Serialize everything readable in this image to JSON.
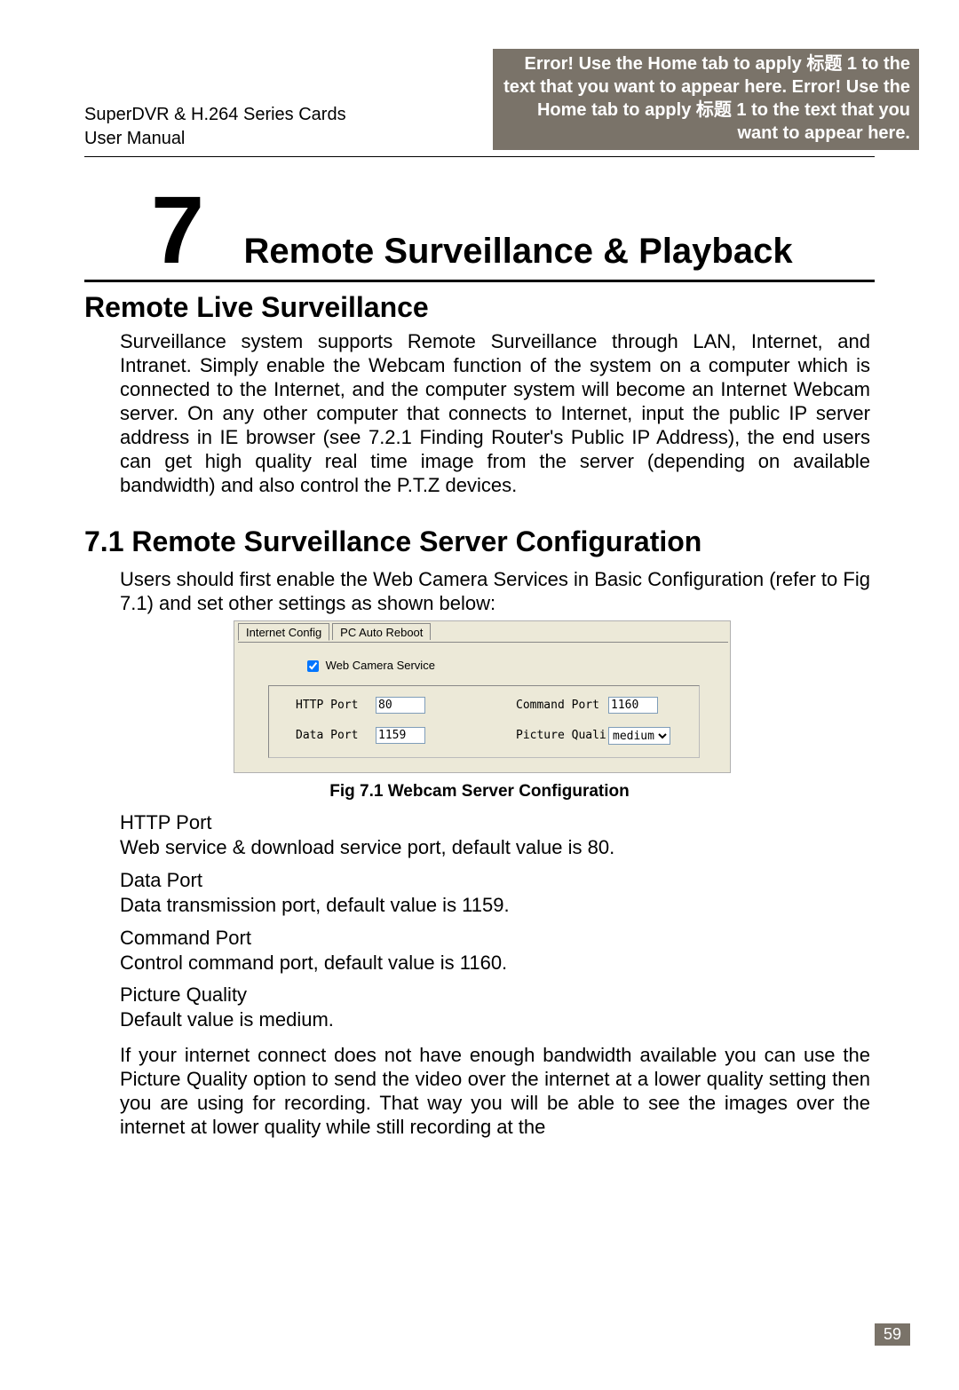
{
  "header": {
    "left_line1": "SuperDVR & H.264 Series Cards",
    "left_line2": "User Manual",
    "right_error": "Error! Use the Home tab to apply 标题 1 to the text that you want to appear here. Error! Use the Home tab to apply 标题 1 to the text that you want to appear here."
  },
  "chapter": {
    "number": "7",
    "title": "Remote Surveillance & Playback"
  },
  "sections": {
    "h2a": "Remote Live Surveillance",
    "h2b": "7.1 Remote Surveillance Server Configuration"
  },
  "paragraphs": {
    "p1": "Surveillance system supports Remote Surveillance through LAN, Internet, and Intranet. Simply enable the Webcam function of the system on a computer which is connected to the Internet, and the computer system will become an Internet Webcam server. On any other computer that connects to Internet, input the public IP server address in IE browser (see 7.2.1 Finding Router's Public IP Address), the end users can get high quality real time image from the server (depending on available bandwidth) and also control the P.T.Z devices.",
    "p2": "Users should first enable the Web Camera Services in Basic Configuration (refer to Fig 7.1) and set other settings as shown below:",
    "p3": "If your internet connect does not have enough bandwidth available you can use the Picture Quality option to send the video over the internet at a lower quality setting then you are using for recording. That way you will be able to see the images over the internet at lower quality while still recording at the"
  },
  "figure": {
    "caption": "Fig 7.1 Webcam Server Configuration",
    "tabs": {
      "tab1": "Internet Config",
      "tab2": "PC Auto Reboot"
    },
    "checkbox_label": "Web Camera Service",
    "checkbox_checked": true,
    "fields": {
      "http_label": "HTTP Port",
      "http_value": "80",
      "command_label": "Command Port",
      "command_value": "1160",
      "data_label": "Data Port",
      "data_value": "1159",
      "picture_label": "Picture Quali",
      "picture_value": "medium"
    }
  },
  "definitions": {
    "d1_title": "HTTP Port",
    "d1_text": "Web service & download service port, default value is 80.",
    "d2_title": "Data Port",
    "d2_text": "Data transmission port, default value is 1159.",
    "d3_title": "Command Port",
    "d3_text": "Control command port, default value is 1160.",
    "d4_title": "Picture Quality",
    "d4_text": "Default value is medium."
  },
  "page_number": "59",
  "colors": {
    "header_bg": "#7a7369",
    "header_fg": "#ffffff",
    "figure_bg": "#ece9d8",
    "input_border": "#7f9db9"
  }
}
